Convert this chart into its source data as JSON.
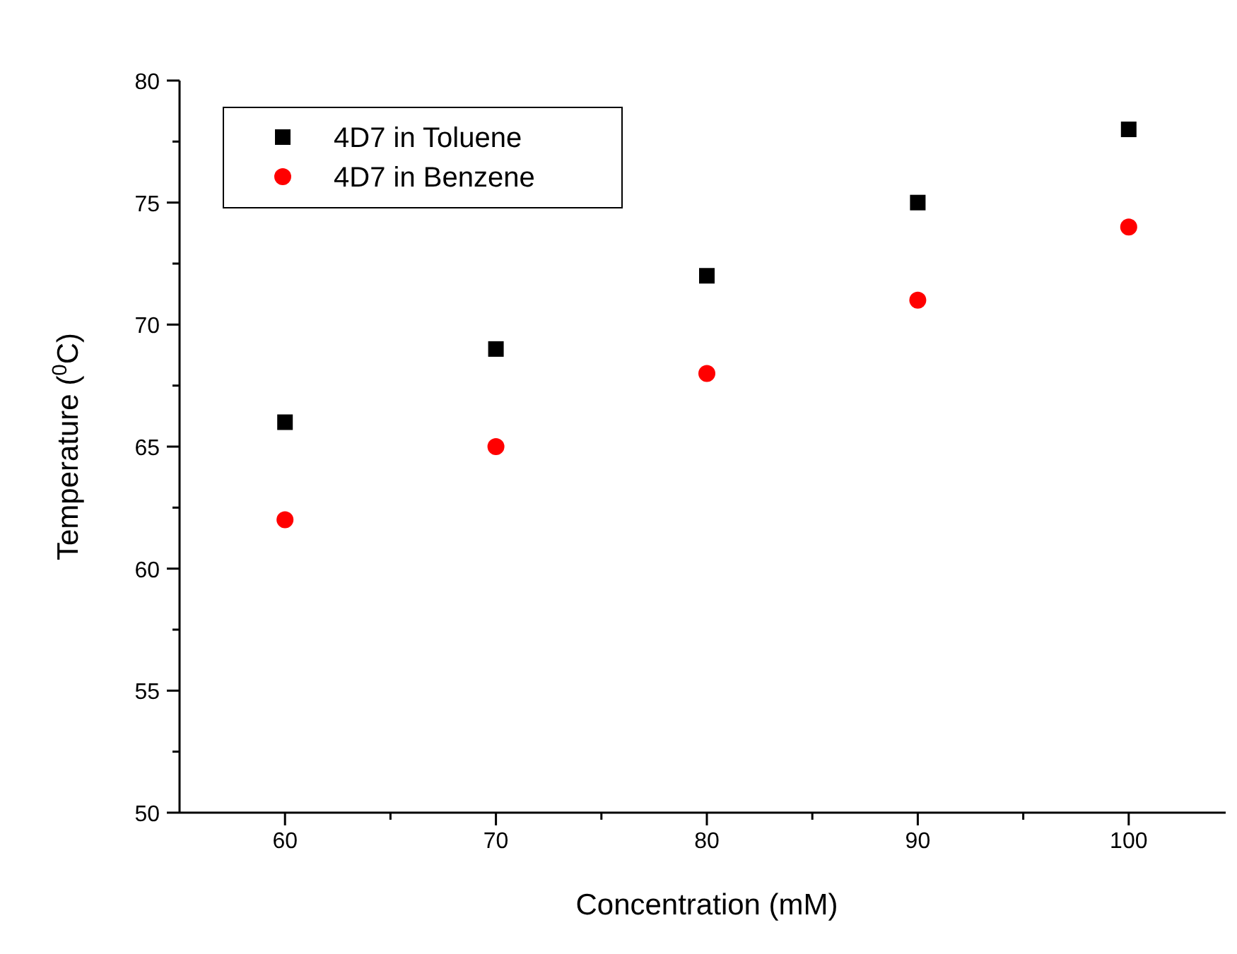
{
  "chart_data": {
    "type": "scatter",
    "xlabel": "Concentration (mM)",
    "ylabel": "Temperature ($^{0}$C)",
    "x": [
      60,
      70,
      80,
      90,
      100
    ],
    "series": [
      {
        "name": "4D7 in Toluene",
        "color": "#000000",
        "marker": "square",
        "values": [
          66,
          69,
          72,
          75,
          78
        ]
      },
      {
        "name": "4D7 in Benzene",
        "color": "#ff0000",
        "marker": "circle",
        "values": [
          62,
          65,
          68,
          71,
          74
        ]
      }
    ],
    "xlim": [
      55,
      105
    ],
    "xticks": [
      60,
      {
        "value": 65,
        "label": null
      },
      70,
      {
        "value": 75,
        "label": null
      },
      80,
      {
        "value": 85,
        "label": null
      },
      90,
      {
        "value": 95,
        "label": null
      },
      100
    ],
    "ylim": [
      50,
      80
    ],
    "yticks": [
      50,
      {
        "value": 52.5,
        "label": null
      },
      55,
      {
        "value": 57.5,
        "label": null
      },
      60,
      {
        "value": 62.5,
        "label": null
      },
      65,
      {
        "value": 67.5,
        "label": null
      },
      70,
      {
        "value": 72.5,
        "label": null
      },
      75,
      {
        "value": 77.5,
        "label": null
      },
      80
    ],
    "grid": false,
    "legend": "top left"
  }
}
